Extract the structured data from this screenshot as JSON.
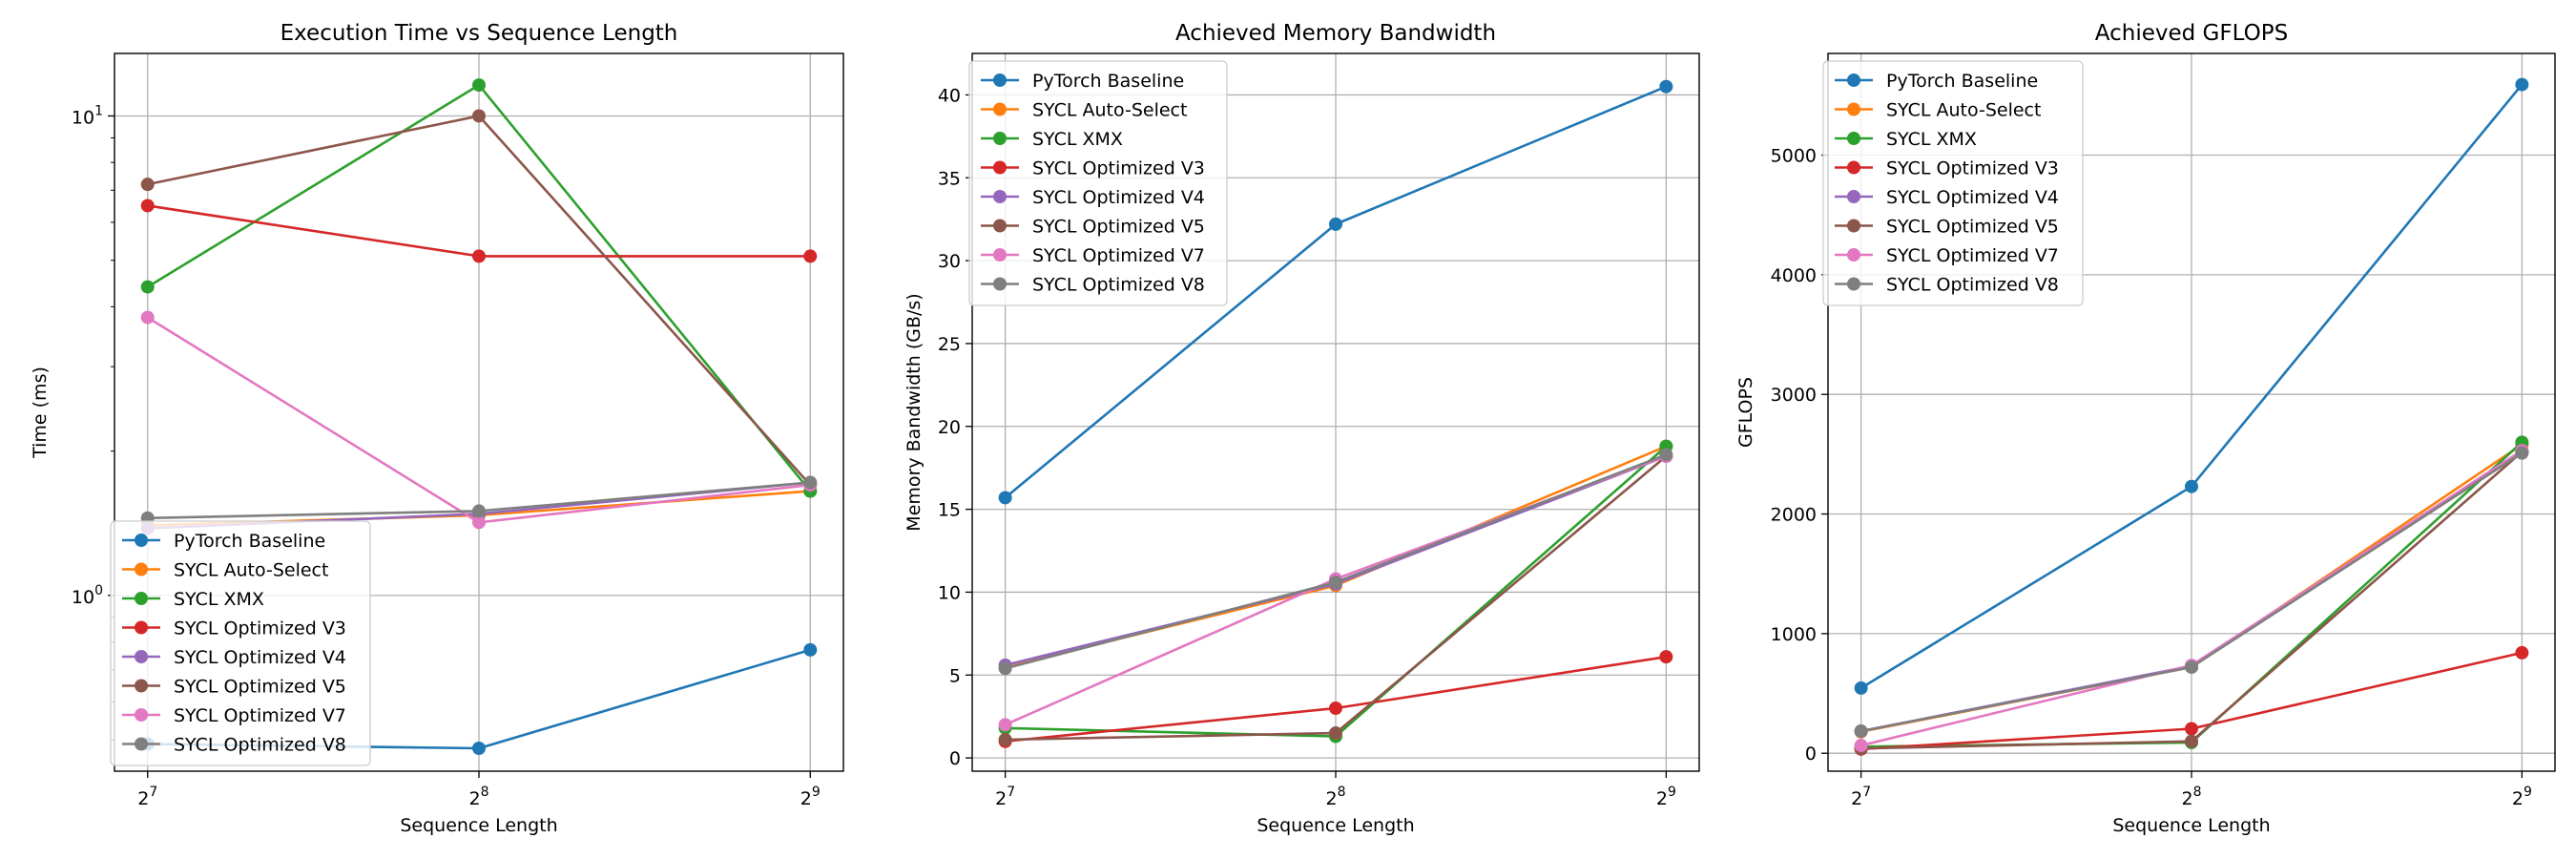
{
  "series_styles": [
    {
      "name": "PyTorch Baseline",
      "color": "#1f77b4"
    },
    {
      "name": "SYCL Auto-Select",
      "color": "#ff7f0e"
    },
    {
      "name": "SYCL XMX",
      "color": "#2ca02c"
    },
    {
      "name": "SYCL Optimized V3",
      "color": "#d62728"
    },
    {
      "name": "SYCL Optimized V4",
      "color": "#9467bd"
    },
    {
      "name": "SYCL Optimized V5",
      "color": "#8c564b"
    },
    {
      "name": "SYCL Optimized V7",
      "color": "#e377c2"
    },
    {
      "name": "SYCL Optimized V8",
      "color": "#7f7f7f"
    }
  ],
  "chart_data": [
    {
      "type": "line",
      "title": "Execution Time vs Sequence Length",
      "xlabel": "Sequence Length",
      "ylabel": "Time (ms)",
      "x": [
        128,
        256,
        512
      ],
      "x_tick_labels": [
        {
          "base": "2",
          "exp": "7"
        },
        {
          "base": "2",
          "exp": "8"
        },
        {
          "base": "2",
          "exp": "9"
        }
      ],
      "x_scale": "log2",
      "y_scale": "log",
      "ylim": [
        0.43,
        13.5
      ],
      "y_ticks": [
        {
          "value": 1,
          "base": "10",
          "exp": "0"
        },
        {
          "value": 10,
          "base": "10",
          "exp": "1"
        }
      ],
      "legend": "lower-left",
      "grid": true,
      "series": [
        {
          "name": "PyTorch Baseline",
          "values": [
            0.49,
            0.48,
            0.77
          ]
        },
        {
          "name": "SYCL Auto-Select",
          "values": [
            1.4,
            1.47,
            1.65
          ]
        },
        {
          "name": "SYCL XMX",
          "values": [
            4.4,
            11.6,
            1.65
          ]
        },
        {
          "name": "SYCL Optimized V3",
          "values": [
            6.5,
            5.1,
            5.1
          ]
        },
        {
          "name": "SYCL Optimized V4",
          "values": [
            1.38,
            1.48,
            1.72
          ]
        },
        {
          "name": "SYCL Optimized V5",
          "values": [
            7.2,
            10.0,
            1.7
          ]
        },
        {
          "name": "SYCL Optimized V7",
          "values": [
            3.8,
            1.42,
            1.7
          ]
        },
        {
          "name": "SYCL Optimized V8",
          "values": [
            1.45,
            1.5,
            1.72
          ]
        }
      ]
    },
    {
      "type": "line",
      "title": "Achieved Memory Bandwidth",
      "xlabel": "Sequence Length",
      "ylabel": "Memory Bandwidth (GB/s)",
      "x": [
        128,
        256,
        512
      ],
      "x_tick_labels": [
        {
          "base": "2",
          "exp": "7"
        },
        {
          "base": "2",
          "exp": "8"
        },
        {
          "base": "2",
          "exp": "9"
        }
      ],
      "x_scale": "log2",
      "y_scale": "linear",
      "ylim": [
        -0.8,
        42.5
      ],
      "y_ticks": [
        {
          "value": 0,
          "label": "0"
        },
        {
          "value": 5,
          "label": "5"
        },
        {
          "value": 10,
          "label": "10"
        },
        {
          "value": 15,
          "label": "15"
        },
        {
          "value": 20,
          "label": "20"
        },
        {
          "value": 25,
          "label": "25"
        },
        {
          "value": 30,
          "label": "30"
        },
        {
          "value": 35,
          "label": "35"
        },
        {
          "value": 40,
          "label": "40"
        }
      ],
      "legend": "upper-left",
      "grid": true,
      "series": [
        {
          "name": "PyTorch Baseline",
          "values": [
            15.7,
            32.2,
            40.5
          ]
        },
        {
          "name": "SYCL Auto-Select",
          "values": [
            5.5,
            10.4,
            18.8
          ]
        },
        {
          "name": "SYCL XMX",
          "values": [
            1.8,
            1.3,
            18.8
          ]
        },
        {
          "name": "SYCL Optimized V3",
          "values": [
            1.0,
            3.0,
            6.1
          ]
        },
        {
          "name": "SYCL Optimized V4",
          "values": [
            5.6,
            10.5,
            18.2
          ]
        },
        {
          "name": "SYCL Optimized V5",
          "values": [
            1.1,
            1.5,
            18.2
          ]
        },
        {
          "name": "SYCL Optimized V7",
          "values": [
            2.0,
            10.8,
            18.2
          ]
        },
        {
          "name": "SYCL Optimized V8",
          "values": [
            5.4,
            10.6,
            18.3
          ]
        }
      ]
    },
    {
      "type": "line",
      "title": "Achieved GFLOPS",
      "xlabel": "Sequence Length",
      "ylabel": "GFLOPS",
      "x": [
        128,
        256,
        512
      ],
      "x_tick_labels": [
        {
          "base": "2",
          "exp": "7"
        },
        {
          "base": "2",
          "exp": "8"
        },
        {
          "base": "2",
          "exp": "9"
        }
      ],
      "x_scale": "log2",
      "y_scale": "linear",
      "ylim": [
        -150,
        5850
      ],
      "y_ticks": [
        {
          "value": 0,
          "label": "0"
        },
        {
          "value": 1000,
          "label": "1000"
        },
        {
          "value": 2000,
          "label": "2000"
        },
        {
          "value": 3000,
          "label": "3000"
        },
        {
          "value": 4000,
          "label": "4000"
        },
        {
          "value": 5000,
          "label": "5000"
        }
      ],
      "legend": "upper-left",
      "grid": true,
      "series": [
        {
          "name": "PyTorch Baseline",
          "values": [
            545,
            2230,
            5590
          ]
        },
        {
          "name": "SYCL Auto-Select",
          "values": [
            180,
            720,
            2580
          ]
        },
        {
          "name": "SYCL XMX",
          "values": [
            55,
            90,
            2600
          ]
        },
        {
          "name": "SYCL Optimized V3",
          "values": [
            35,
            205,
            840
          ]
        },
        {
          "name": "SYCL Optimized V4",
          "values": [
            185,
            730,
            2530
          ]
        },
        {
          "name": "SYCL Optimized V5",
          "values": [
            40,
            100,
            2520
          ]
        },
        {
          "name": "SYCL Optimized V7",
          "values": [
            65,
            735,
            2530
          ]
        },
        {
          "name": "SYCL Optimized V8",
          "values": [
            185,
            720,
            2510
          ]
        }
      ]
    }
  ]
}
